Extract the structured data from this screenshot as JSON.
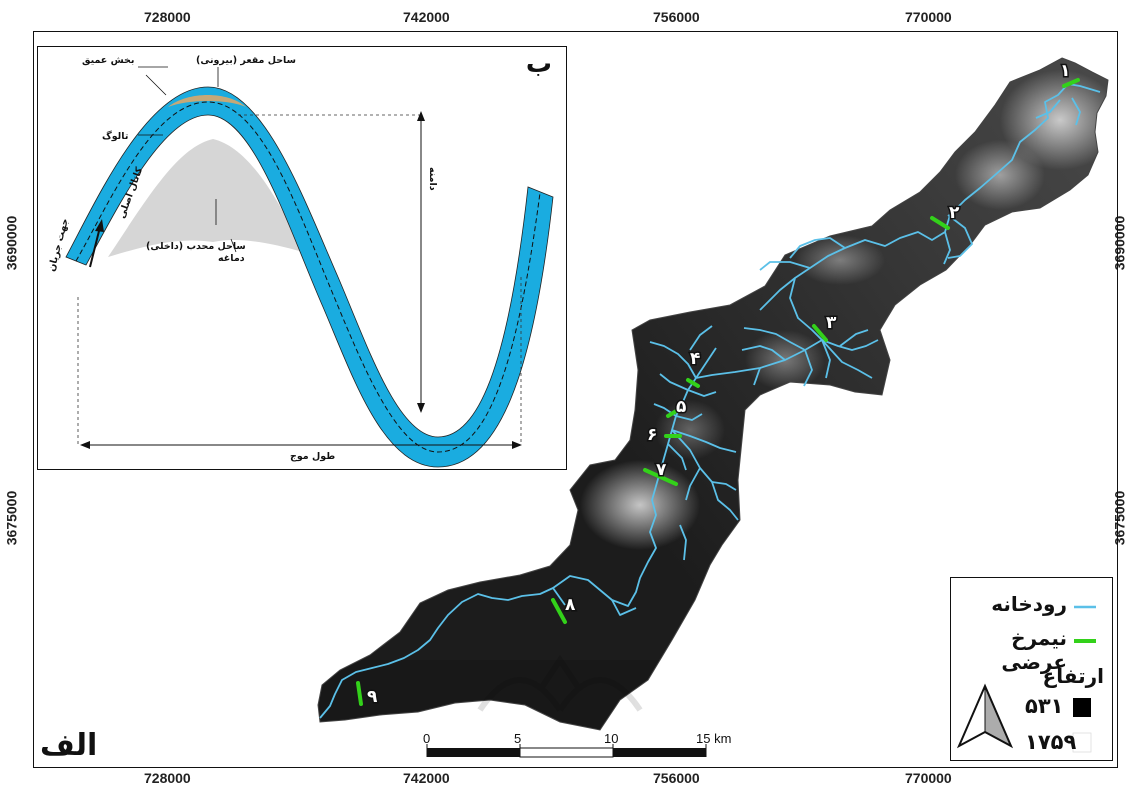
{
  "coords": {
    "top": [
      "728000",
      "742000",
      "756000",
      "770000"
    ],
    "bottom": [
      "728000",
      "742000",
      "756000",
      "770000"
    ],
    "left": [
      "3690000",
      "3675000"
    ],
    "right": [
      "3690000",
      "3675000"
    ]
  },
  "panel_labels": {
    "main": "الف",
    "inset": "ب"
  },
  "inset_labels": {
    "concave_bank": "ساحل مقعر (بیرونی)",
    "deep_section": "بخش عمیق",
    "thalweg": "تالوگ",
    "main_channel": "کانال اصلی",
    "flow_direction": "جهت جریان",
    "convex_bank": "ساحل محدب (داخلی)",
    "point_bar": "دماغه",
    "amplitude": "دامنه",
    "wavelength": "طول موج"
  },
  "profiles": [
    "۱",
    "۲",
    "۳",
    "۴",
    "۵",
    "۶",
    "۷",
    "۸",
    "۹"
  ],
  "scalebar": {
    "ticks": [
      "0",
      "5",
      "10",
      "15 km"
    ]
  },
  "legend": {
    "river": "رودخانه",
    "cross_section": "نیمرخ عرضی",
    "elevation_title": "ارتفاع",
    "elev_low": "۵۳۱",
    "elev_high": "۱۷۵۹"
  },
  "colors": {
    "river": "#5bc0e8",
    "profile": "#33d11a",
    "channel": "#1aace0",
    "bar": "#d6d6d6"
  }
}
